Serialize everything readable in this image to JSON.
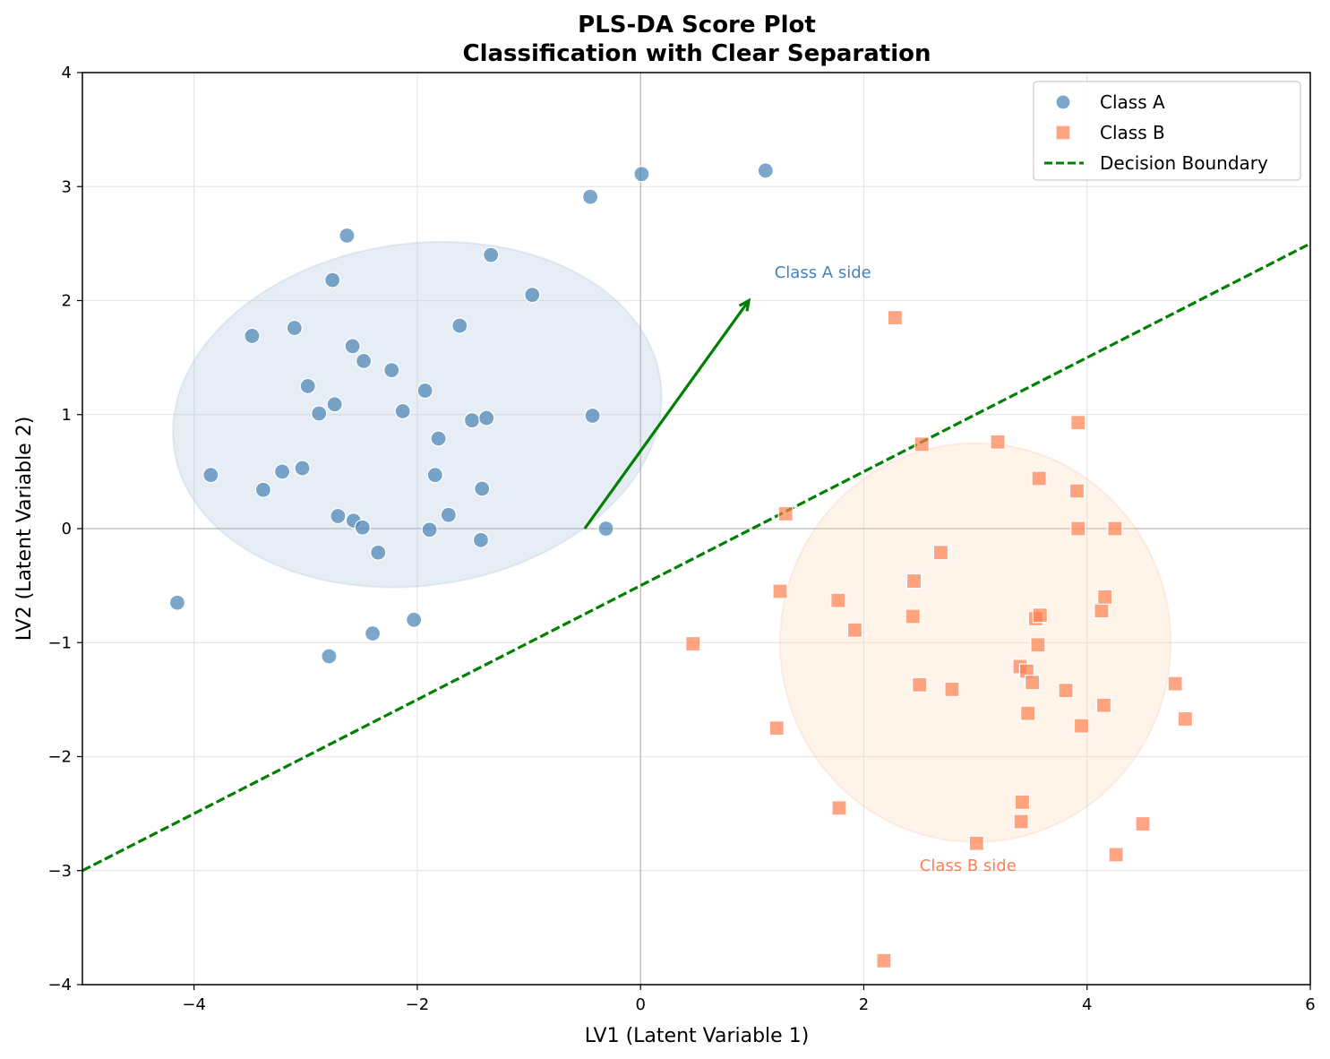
{
  "chart_data": {
    "type": "scatter",
    "title_line1": "PLS-DA Score Plot",
    "title_line2": "Classification with Clear Separation",
    "xlabel": "LV1 (Latent Variable 1)",
    "ylabel": "LV2 (Latent Variable 2)",
    "xlim": [
      -5,
      6
    ],
    "ylim": [
      -4,
      4
    ],
    "xticks": [
      -4,
      -2,
      0,
      2,
      4,
      6
    ],
    "yticks": [
      -4,
      -3,
      -2,
      -1,
      0,
      1,
      2,
      3,
      4
    ],
    "xtick_labels": [
      "−4",
      "−2",
      "0",
      "2",
      "4",
      "6"
    ],
    "ytick_labels": [
      "−4",
      "−3",
      "−2",
      "−1",
      "0",
      "1",
      "2",
      "3",
      "4"
    ],
    "grid": true,
    "legend_position": "top-right",
    "colors": {
      "class_a": "#4682b4",
      "class_b": "#ff7f50",
      "boundary": "#008000",
      "ellipse_a_fill": "#b0c4de",
      "ellipse_b_fill": "#ffdab9"
    },
    "series": [
      {
        "name": "Class A",
        "marker": "circle",
        "points": [
          [
            -4.15,
            -0.65
          ],
          [
            -3.85,
            0.47
          ],
          [
            -3.48,
            1.69
          ],
          [
            -3.38,
            0.34
          ],
          [
            -3.21,
            0.5
          ],
          [
            -3.1,
            1.76
          ],
          [
            -3.03,
            0.53
          ],
          [
            -2.98,
            1.25
          ],
          [
            -2.88,
            1.01
          ],
          [
            -2.79,
            -1.12
          ],
          [
            -2.76,
            2.18
          ],
          [
            -2.74,
            1.09
          ],
          [
            -2.71,
            0.11
          ],
          [
            -2.63,
            2.57
          ],
          [
            -2.58,
            1.6
          ],
          [
            -2.57,
            0.07
          ],
          [
            -2.49,
            0.01
          ],
          [
            -2.48,
            1.47
          ],
          [
            -2.4,
            -0.92
          ],
          [
            -2.35,
            -0.21
          ],
          [
            -2.23,
            1.39
          ],
          [
            -2.13,
            1.03
          ],
          [
            -2.03,
            -0.8
          ],
          [
            -1.93,
            1.21
          ],
          [
            -1.89,
            -0.01
          ],
          [
            -1.84,
            0.47
          ],
          [
            -1.81,
            0.79
          ],
          [
            -1.72,
            0.12
          ],
          [
            -1.62,
            1.78
          ],
          [
            -1.51,
            0.95
          ],
          [
            -1.43,
            -0.1
          ],
          [
            -1.42,
            0.35
          ],
          [
            -1.38,
            0.97
          ],
          [
            -1.34,
            2.4
          ],
          [
            -0.97,
            2.05
          ],
          [
            -0.45,
            2.91
          ],
          [
            -0.43,
            0.99
          ],
          [
            -0.31,
            0.0
          ],
          [
            0.01,
            3.11
          ],
          [
            1.12,
            3.14
          ]
        ]
      },
      {
        "name": "Class B",
        "marker": "square",
        "points": [
          [
            0.47,
            -1.01
          ],
          [
            1.22,
            -1.75
          ],
          [
            1.25,
            -0.55
          ],
          [
            1.3,
            0.13
          ],
          [
            1.77,
            -0.63
          ],
          [
            1.78,
            -2.45
          ],
          [
            1.92,
            -0.89
          ],
          [
            2.18,
            -3.79
          ],
          [
            2.28,
            1.85
          ],
          [
            2.44,
            -0.77
          ],
          [
            2.45,
            -0.46
          ],
          [
            2.5,
            -1.37
          ],
          [
            2.52,
            0.74
          ],
          [
            2.69,
            -0.21
          ],
          [
            2.79,
            -1.41
          ],
          [
            3.01,
            -2.76
          ],
          [
            3.2,
            0.76
          ],
          [
            3.4,
            -1.21
          ],
          [
            3.41,
            -2.57
          ],
          [
            3.42,
            -2.4
          ],
          [
            3.46,
            -1.25
          ],
          [
            3.47,
            -1.62
          ],
          [
            3.51,
            -1.35
          ],
          [
            3.54,
            -0.79
          ],
          [
            3.56,
            -1.02
          ],
          [
            3.57,
            0.44
          ],
          [
            3.58,
            -0.76
          ],
          [
            3.81,
            -1.42
          ],
          [
            3.91,
            0.33
          ],
          [
            3.92,
            0.93
          ],
          [
            3.92,
            -0.0
          ],
          [
            3.95,
            -1.73
          ],
          [
            4.13,
            -0.72
          ],
          [
            4.15,
            -1.55
          ],
          [
            4.16,
            -0.6
          ],
          [
            4.25,
            0.0
          ],
          [
            4.26,
            -2.86
          ],
          [
            4.5,
            -2.59
          ],
          [
            4.79,
            -1.36
          ],
          [
            4.88,
            -1.67
          ]
        ]
      },
      {
        "name": "Decision Boundary",
        "type": "line",
        "points": [
          [
            -5,
            -3
          ],
          [
            6,
            2.5
          ]
        ]
      }
    ],
    "ellipses": [
      {
        "series": "Class A",
        "center": [
          -2.0,
          1.0
        ],
        "x_radius": 2.2,
        "y_radius": 1.5,
        "angle_deg": 8
      },
      {
        "series": "Class B",
        "center": [
          3.0,
          -1.0
        ],
        "x_radius": 1.75,
        "y_radius": 1.75,
        "angle_deg": 0
      }
    ],
    "arrow": {
      "from": [
        -0.5,
        0.0
      ],
      "to": [
        0.97,
        2.0
      ]
    },
    "annotations": [
      {
        "text": "Class A side",
        "at": [
          1.2,
          2.2
        ],
        "color": "#4682b4"
      },
      {
        "text": "Class B side",
        "at": [
          2.5,
          -3.0
        ],
        "color": "#ff7f50"
      }
    ]
  }
}
